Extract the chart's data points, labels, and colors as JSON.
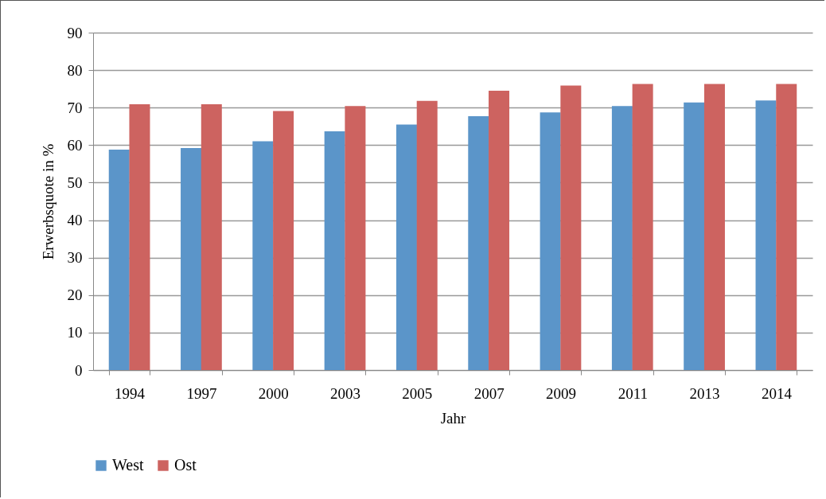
{
  "chart_data": {
    "type": "bar",
    "xlabel": "Jahr",
    "ylabel": "Erwerbsquote in %",
    "categories": [
      "1994",
      "1997",
      "2000",
      "2003",
      "2005",
      "2007",
      "2009",
      "2011",
      "2013",
      "2014"
    ],
    "series": [
      {
        "name": "West",
        "color": "#5b95c9",
        "values": [
          58.8,
          59.2,
          61.0,
          63.7,
          65.5,
          67.7,
          68.7,
          70.4,
          71.4,
          71.9
        ]
      },
      {
        "name": "Ost",
        "color": "#cd6360",
        "values": [
          70.9,
          70.9,
          69.1,
          70.4,
          71.8,
          74.5,
          75.9,
          76.3,
          76.3,
          76.3
        ]
      }
    ],
    "ylim": [
      0,
      90
    ],
    "yticks": [
      0,
      10,
      20,
      30,
      40,
      50,
      60,
      70,
      80,
      90
    ],
    "grid": "y",
    "legend": "bottom"
  }
}
